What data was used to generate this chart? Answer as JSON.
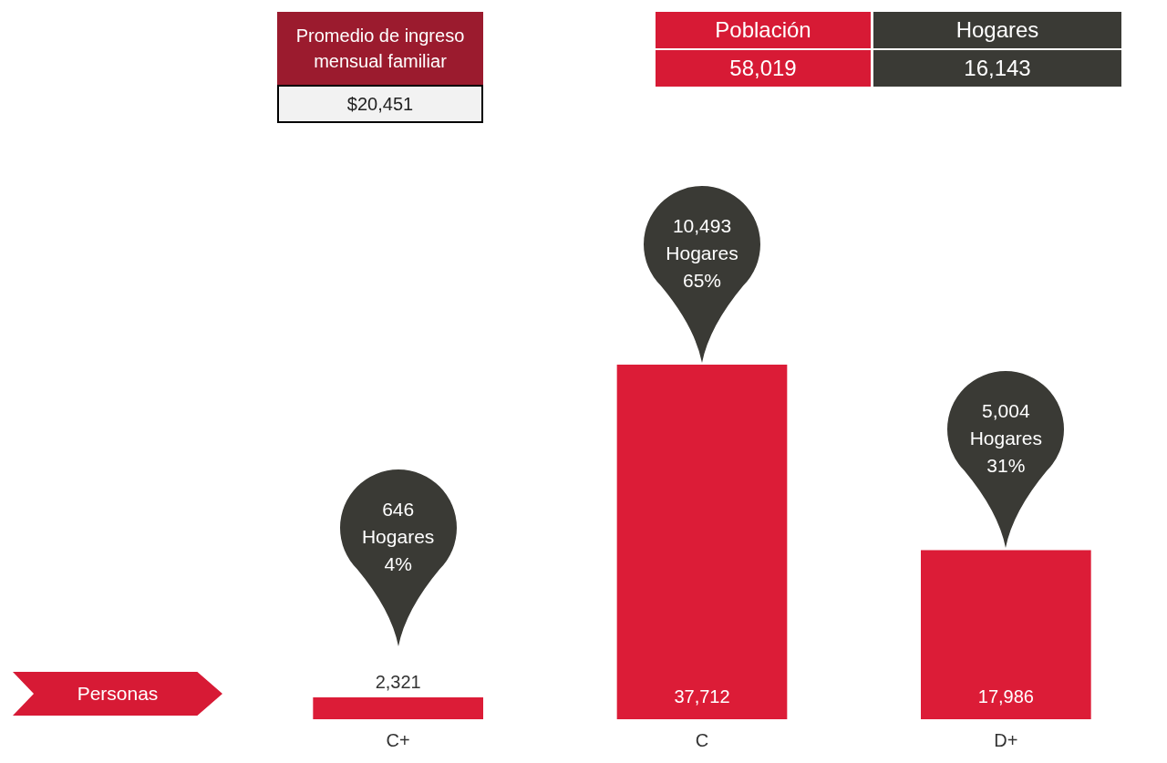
{
  "chart_data": {
    "type": "bar",
    "categories": [
      "C+",
      "C",
      "D+"
    ],
    "values": [
      2321,
      37712,
      17986
    ],
    "value_labels": [
      "2,321",
      "37,712",
      "17,986"
    ],
    "color": "#dc1c37",
    "ylabel": "Personas",
    "grid": false,
    "legend": false,
    "annotations": [
      "Promedio de ingreso mensual familiar",
      "$20,451",
      "Población",
      "Hogares",
      "58,019",
      "16,143",
      "646 Hogares 4%",
      "10,493 Hogares 65%",
      "5,004 Hogares 31%"
    ]
  }
}
